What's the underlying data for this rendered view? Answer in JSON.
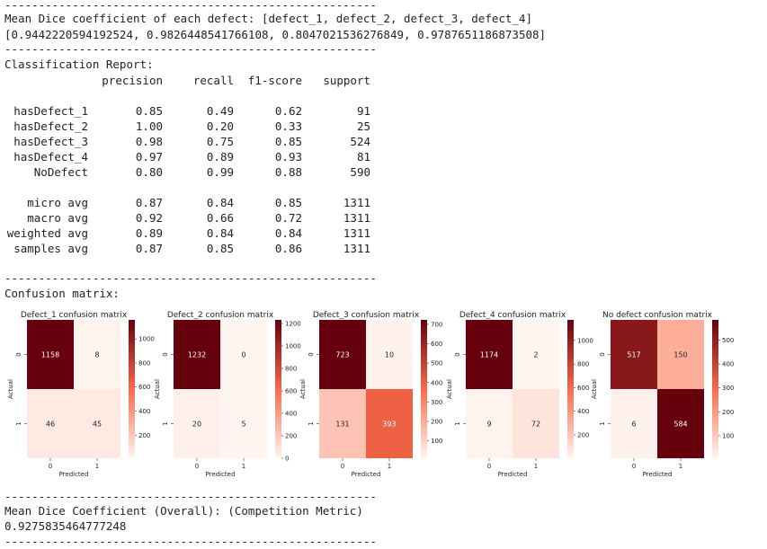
{
  "output": {
    "separator": "-------------------------------------------------------",
    "dice_header": "Mean Dice coefficient of each defect: [defect_1, defect_2, defect_3, defect_4]",
    "dice_values": "[0.9442220594192524, 0.9826448541766108, 0.8047021536276849, 0.9787651186873508]",
    "report_title": "Classification Report:",
    "report_columns": [
      "precision",
      "recall",
      "f1-score",
      "support"
    ],
    "report_rows": [
      {
        "label": "hasDefect_1",
        "precision": "0.85",
        "recall": "0.49",
        "f1": "0.62",
        "support": "91"
      },
      {
        "label": "hasDefect_2",
        "precision": "1.00",
        "recall": "0.20",
        "f1": "0.33",
        "support": "25"
      },
      {
        "label": "hasDefect_3",
        "precision": "0.98",
        "recall": "0.75",
        "f1": "0.85",
        "support": "524"
      },
      {
        "label": "hasDefect_4",
        "precision": "0.97",
        "recall": "0.89",
        "f1": "0.93",
        "support": "81"
      },
      {
        "label": "NoDefect",
        "precision": "0.80",
        "recall": "0.99",
        "f1": "0.88",
        "support": "590"
      }
    ],
    "avg_rows": [
      {
        "label": "micro avg",
        "precision": "0.87",
        "recall": "0.84",
        "f1": "0.85",
        "support": "1311"
      },
      {
        "label": "macro avg",
        "precision": "0.92",
        "recall": "0.66",
        "f1": "0.72",
        "support": "1311"
      },
      {
        "label": "weighted avg",
        "precision": "0.89",
        "recall": "0.84",
        "f1": "0.84",
        "support": "1311"
      },
      {
        "label": "samples avg",
        "precision": "0.87",
        "recall": "0.85",
        "f1": "0.86",
        "support": "1311"
      }
    ],
    "confusion_title": "Confusion matrix:",
    "overall_label": "Mean Dice Coefficient (Overall): (Competition Metric)",
    "overall_value": "0.9275835464777248"
  },
  "chart_data": [
    {
      "type": "heatmap",
      "title": "Defect_1 confusion matrix",
      "xlabel": "Predicted",
      "ylabel": "Actual",
      "x": [
        "0",
        "1"
      ],
      "y": [
        "0",
        "1"
      ],
      "values": [
        [
          1158,
          8
        ],
        [
          46,
          45
        ]
      ],
      "colorbar_ticks": [
        200,
        400,
        600,
        800,
        1000
      ],
      "vmax": 1158
    },
    {
      "type": "heatmap",
      "title": "Defect_2 confusion matrix",
      "xlabel": "Predicted",
      "ylabel": "Actual",
      "x": [
        "0",
        "1"
      ],
      "y": [
        "0",
        "1"
      ],
      "values": [
        [
          1232,
          0
        ],
        [
          20,
          5
        ]
      ],
      "colorbar_ticks": [
        0,
        200,
        400,
        600,
        800,
        1000,
        1200
      ],
      "vmax": 1232
    },
    {
      "type": "heatmap",
      "title": "Defect_3 confusion matrix",
      "xlabel": "Predicted",
      "ylabel": "Actual",
      "x": [
        "0",
        "1"
      ],
      "y": [
        "0",
        "1"
      ],
      "values": [
        [
          723,
          10
        ],
        [
          131,
          393
        ]
      ],
      "colorbar_ticks": [
        100,
        200,
        300,
        400,
        500,
        600,
        700
      ],
      "vmax": 723
    },
    {
      "type": "heatmap",
      "title": "Defect_4 confusion matrix",
      "xlabel": "Predicted",
      "ylabel": "Actual",
      "x": [
        "0",
        "1"
      ],
      "y": [
        "0",
        "1"
      ],
      "values": [
        [
          1174,
          2
        ],
        [
          9,
          72
        ]
      ],
      "colorbar_ticks": [
        200,
        400,
        600,
        800,
        1000
      ],
      "vmax": 1174
    },
    {
      "type": "heatmap",
      "title": "No defect confusion matrix",
      "xlabel": "Predicted",
      "ylabel": "Actual",
      "x": [
        "0",
        "1"
      ],
      "y": [
        "0",
        "1"
      ],
      "values": [
        [
          517,
          150
        ],
        [
          6,
          584
        ]
      ],
      "colorbar_ticks": [
        100,
        200,
        300,
        400,
        500
      ],
      "vmax": 584
    }
  ]
}
